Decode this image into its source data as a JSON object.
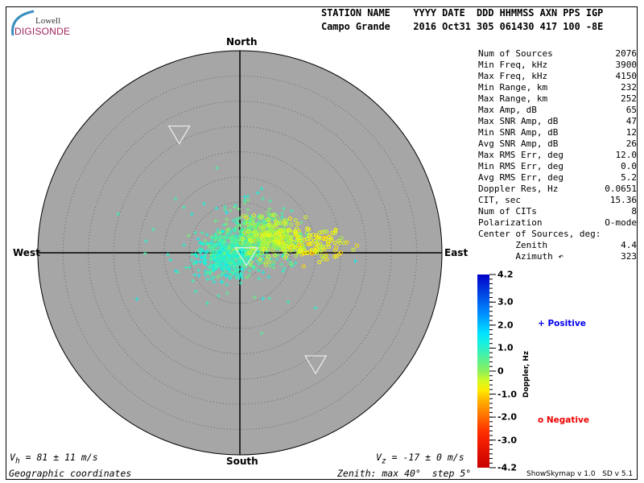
{
  "logo": {
    "line1": "Lowell",
    "line2": "DIGISONDE"
  },
  "header": {
    "labels": "STATION NAME    YYYY DATE  DDD HHMMSS AXN PPS IGP",
    "values": "Campo Grande    2016 Oct31 305 061430 417 100 -8E"
  },
  "stats": [
    {
      "label": "Num of Sources",
      "value": "2076"
    },
    {
      "label": "Min Freq, kHz",
      "value": "3900"
    },
    {
      "label": "Max Freq, kHz",
      "value": "4150"
    },
    {
      "label": "Min Range, km",
      "value": "232"
    },
    {
      "label": "Max Range, km",
      "value": "252"
    },
    {
      "label": "Max Amp, dB",
      "value": "65"
    },
    {
      "label": "Max SNR Amp, dB",
      "value": "47"
    },
    {
      "label": "Min SNR Amp, dB",
      "value": "12"
    },
    {
      "label": "Avg SNR Amp, dB",
      "value": "26"
    },
    {
      "label": "Max RMS Err, deg",
      "value": "12.0"
    },
    {
      "label": "Min RMS Err, deg",
      "value": "0.0"
    },
    {
      "label": "Avg RMS Err, deg",
      "value": "5.2"
    },
    {
      "label": "Doppler Res, Hz",
      "value": "0.0651"
    },
    {
      "label": "CIT, sec",
      "value": "15.36"
    },
    {
      "label": "Num of CITs",
      "value": "8"
    },
    {
      "label": "Polarization",
      "value": "O-mode"
    },
    {
      "label": "Center of Sources, deg:",
      "value": ""
    },
    {
      "label": "       Zenith",
      "value": "4.4"
    },
    {
      "label": "       Azimuth ↶",
      "value": "323"
    }
  ],
  "chart_data": {
    "type": "scatter",
    "projection": "polar skymap",
    "directions": {
      "north": "North",
      "south": "South",
      "east": "East",
      "west": "West"
    },
    "zenith_max_deg": 40,
    "zenith_step_deg": 5,
    "vh_text": "V",
    "vh_sub": "h",
    "vh_value": " = 81 ± 11 m/s",
    "vz_text": "V",
    "vz_sub": "z",
    "vz_value": " = -17 ± 0 m/s",
    "coords_label": "Geographic coordinates",
    "zenith_label": "Zenith: max 40°  step 5°",
    "center_zenith_deg": 4.4,
    "center_azimuth_deg": 323,
    "colorbar": {
      "label": "Doppler, Hz",
      "min": -4.2,
      "max": 4.2,
      "ticks": [
        "4.2",
        "3.0",
        "2.0",
        "1.0",
        "0",
        "-1.0",
        "-2.0",
        "-3.0",
        "-4.2"
      ],
      "tick_values": [
        4.2,
        3,
        2,
        1,
        0,
        -1,
        -2,
        -3,
        -4.2
      ]
    },
    "legend": {
      "positive": "Positive",
      "negative": "Negative",
      "positive_color": "#0000ee",
      "negative_color": "#ee0000"
    },
    "clusters": [
      {
        "kind": "positive",
        "center_deg": [
          -2.5,
          -0.5
        ],
        "spread_deg": [
          3,
          2
        ],
        "doppler": 1.0,
        "count": 520
      },
      {
        "kind": "positive",
        "center_deg": [
          3,
          3
        ],
        "spread_deg": [
          3.5,
          2.5
        ],
        "doppler": 0.4,
        "count": 420
      },
      {
        "kind": "positive",
        "center_deg": [
          0,
          0
        ],
        "spread_deg": [
          8,
          6
        ],
        "doppler": 0.9,
        "count": 90
      },
      {
        "kind": "negative",
        "center_deg": [
          7,
          3
        ],
        "spread_deg": [
          3,
          2
        ],
        "doppler": -0.3,
        "count": 260
      },
      {
        "kind": "negative",
        "center_deg": [
          15,
          1.5
        ],
        "spread_deg": [
          3,
          1.5
        ],
        "doppler": -0.6,
        "count": 110
      }
    ],
    "triangles_deg": [
      [
        -12,
        23.5
      ],
      [
        15,
        -22
      ],
      [
        1.3,
        -0.6
      ]
    ]
  },
  "version": "ShowSkymap v 1.0   SD v 5.1"
}
